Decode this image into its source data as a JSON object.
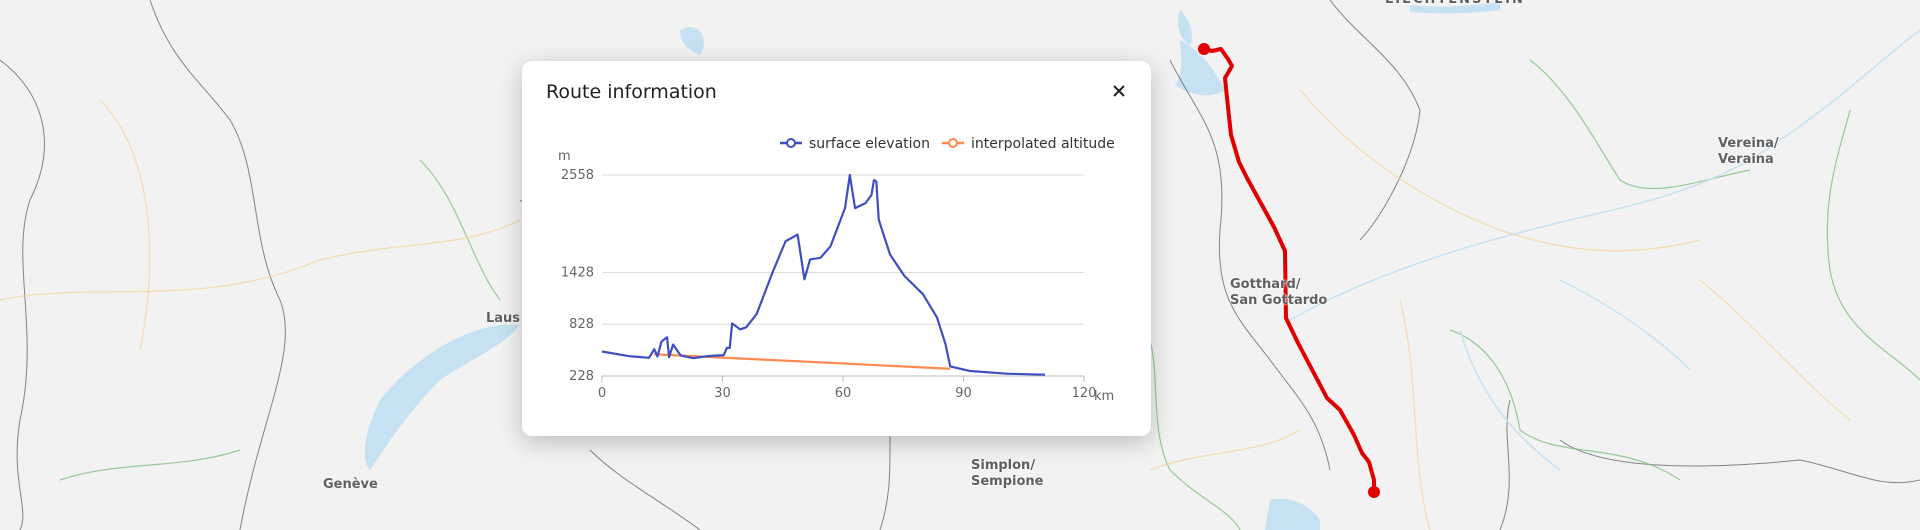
{
  "map": {
    "labels": {
      "liechtenstein": "LIECHTENSTEIN",
      "lausanne": "Laus",
      "geneve": "Genève",
      "simplon": "Simplon/\nSempione",
      "gotthard": "Gotthard/\nSan Gottardo",
      "vereina": "Vereina/\nVeraina"
    },
    "route_color": "#e00000"
  },
  "dialog": {
    "title": "Route information",
    "close_icon": "close-icon"
  },
  "chart_data": {
    "type": "line",
    "title": "",
    "xlabel": "km",
    "ylabel": "m",
    "xlim": [
      0,
      120
    ],
    "ylim": [
      228,
      2558
    ],
    "x_ticks": [
      "0",
      "30",
      "60",
      "90",
      "120"
    ],
    "y_ticks": [
      "228",
      "828",
      "1428",
      "2558"
    ],
    "grid": true,
    "legend_position": "top-right",
    "series": [
      {
        "name": "surface elevation",
        "color": "#3f4fbf",
        "points": [
          [
            0,
            512
          ],
          [
            6.8,
            458
          ],
          [
            11.7,
            439
          ],
          [
            13,
            539
          ],
          [
            13.8,
            454
          ],
          [
            14.8,
            627
          ],
          [
            16.2,
            677
          ],
          [
            16.7,
            447
          ],
          [
            17.7,
            593
          ],
          [
            19.6,
            466
          ],
          [
            22.7,
            435
          ],
          [
            26.2,
            458
          ],
          [
            30.3,
            470
          ],
          [
            31.1,
            554
          ],
          [
            31.8,
            554
          ],
          [
            32.4,
            838
          ],
          [
            34.4,
            769
          ],
          [
            35.9,
            792
          ],
          [
            38.5,
            946
          ],
          [
            42.6,
            1445
          ],
          [
            45.7,
            1790
          ],
          [
            48.7,
            1867
          ],
          [
            50.4,
            1349
          ],
          [
            51.8,
            1579
          ],
          [
            54.4,
            1598
          ],
          [
            56.9,
            1733
          ],
          [
            60.5,
            2174
          ],
          [
            61.7,
            2558
          ],
          [
            63.0,
            2174
          ],
          [
            65.6,
            2232
          ],
          [
            67.1,
            2328
          ],
          [
            67.7,
            2500
          ],
          [
            68.3,
            2481
          ],
          [
            68.9,
            2040
          ],
          [
            71.7,
            1637
          ],
          [
            75.3,
            1387
          ],
          [
            79.9,
            1176
          ],
          [
            83.4,
            907
          ],
          [
            85.5,
            600
          ],
          [
            86.7,
            339
          ],
          [
            91.6,
            286
          ],
          [
            100.8,
            255
          ],
          [
            110.3,
            243
          ]
        ]
      },
      {
        "name": "interpolated altitude",
        "color": "#ff8a50",
        "points": [
          [
            13,
            480
          ],
          [
            86.7,
            312
          ]
        ]
      }
    ]
  }
}
